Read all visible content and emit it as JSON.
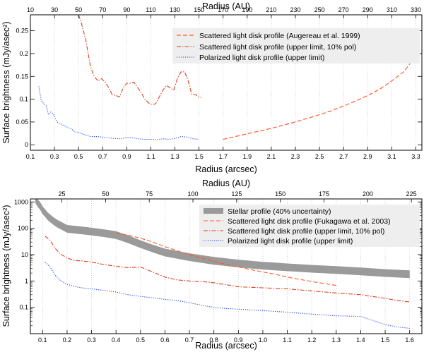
{
  "chart_data": [
    {
      "type": "line",
      "xscale": "linear",
      "yscale": "linear",
      "xlabel": "Radius (arcsec)",
      "ylabel": "Surface brightness (mJy/asec²)",
      "top_xlabel": "Radius (AU)",
      "xlim": [
        0.1,
        3.35
      ],
      "ylim": [
        -0.012,
        0.285
      ],
      "top_xlim": [
        10,
        335
      ],
      "xticks": [
        0.1,
        0.3,
        0.5,
        0.7,
        0.9,
        1.1,
        1.3,
        1.5,
        1.7,
        1.9,
        2.1,
        2.3,
        2.5,
        2.7,
        2.9,
        3.1,
        3.3
      ],
      "xtick_labels": [
        "0.1",
        "0.3",
        "0.5",
        "0.7",
        "0.9",
        "1.1",
        "1.3",
        "1.5",
        "1.7",
        "1.9",
        "2.1",
        "2.3",
        "2.5",
        "2.7",
        "2.9",
        "3.1",
        "3.3"
      ],
      "yticks": [
        0,
        0.05,
        0.1,
        0.15,
        0.2,
        0.25
      ],
      "ytick_labels": [
        "0",
        "0.05",
        "0.1",
        "0.15",
        "0.2",
        "0.25"
      ],
      "top_xticks": [
        10,
        30,
        50,
        70,
        90,
        110,
        130,
        150,
        170,
        190,
        210,
        230,
        250,
        270,
        290,
        310,
        330
      ],
      "top_xtick_labels": [
        "10",
        "30",
        "50",
        "70",
        "90",
        "110",
        "130",
        "150",
        "170",
        "190",
        "210",
        "230",
        "250",
        "270",
        "290",
        "310",
        "330"
      ],
      "grid": "vertical dotted",
      "legend_position": "top-right",
      "series": [
        {
          "name": "Scattered light disk profile (Augereau et al. 1999)",
          "style": "dashed",
          "color": "#ff5a2c",
          "width": 1.2,
          "x": [
            1.7,
            1.8,
            1.9,
            2.0,
            2.1,
            2.2,
            2.3,
            2.4,
            2.5,
            2.6,
            2.7,
            2.8,
            2.9,
            3.0,
            3.1,
            3.2,
            3.28
          ],
          "y": [
            0.012,
            0.018,
            0.024,
            0.03,
            0.036,
            0.043,
            0.05,
            0.058,
            0.066,
            0.075,
            0.085,
            0.096,
            0.108,
            0.122,
            0.14,
            0.16,
            0.188
          ]
        },
        {
          "name": "Scattered light disk profile (upper limit, 10% pol)",
          "style": "dashdot",
          "color": "#d84020",
          "width": 1.1,
          "x": [
            0.5,
            0.52,
            0.54,
            0.56,
            0.58,
            0.6,
            0.63,
            0.66,
            0.69,
            0.72,
            0.75,
            0.78,
            0.81,
            0.84,
            0.87,
            0.9,
            0.93,
            0.96,
            0.99,
            1.02,
            1.05,
            1.08,
            1.11,
            1.14,
            1.17,
            1.2,
            1.23,
            1.26,
            1.29,
            1.32,
            1.35,
            1.38,
            1.41,
            1.44,
            1.47,
            1.5,
            1.52
          ],
          "y": [
            0.285,
            0.27,
            0.25,
            0.23,
            0.2,
            0.17,
            0.15,
            0.14,
            0.145,
            0.138,
            0.125,
            0.11,
            0.108,
            0.105,
            0.125,
            0.135,
            0.135,
            0.137,
            0.125,
            0.115,
            0.1,
            0.092,
            0.088,
            0.09,
            0.105,
            0.12,
            0.13,
            0.125,
            0.12,
            0.145,
            0.16,
            0.16,
            0.14,
            0.11,
            0.11,
            0.105,
            0.104
          ]
        },
        {
          "name": "Polarized light disk profile (upper limit)",
          "style": "dotted",
          "color": "#2244ee",
          "width": 1.1,
          "x": [
            0.17,
            0.19,
            0.21,
            0.23,
            0.25,
            0.27,
            0.29,
            0.31,
            0.33,
            0.35,
            0.38,
            0.41,
            0.44,
            0.47,
            0.5,
            0.55,
            0.6,
            0.65,
            0.7,
            0.75,
            0.8,
            0.85,
            0.9,
            0.95,
            1.0,
            1.05,
            1.1,
            1.15,
            1.2,
            1.25,
            1.3,
            1.35,
            1.4,
            1.45,
            1.5
          ],
          "y": [
            0.128,
            0.098,
            0.09,
            0.086,
            0.066,
            0.072,
            0.068,
            0.055,
            0.048,
            0.046,
            0.042,
            0.038,
            0.035,
            0.028,
            0.027,
            0.022,
            0.018,
            0.018,
            0.017,
            0.015,
            0.014,
            0.013,
            0.016,
            0.015,
            0.013,
            0.012,
            0.012,
            0.011,
            0.013,
            0.012,
            0.014,
            0.018,
            0.017,
            0.013,
            0.012
          ]
        }
      ]
    },
    {
      "type": "line",
      "xscale": "linear",
      "yscale": "log",
      "xlabel": "Radius (arcsec)",
      "ylabel": "Surface brightness (mJy/asec²)",
      "top_xlabel": "Radius (AU)",
      "xlim": [
        0.05,
        1.65
      ],
      "ylim": [
        0.01,
        1300
      ],
      "top_xlim": [
        7.0,
        231.0
      ],
      "xticks": [
        0.1,
        0.2,
        0.3,
        0.4,
        0.5,
        0.6,
        0.7,
        0.8,
        0.9,
        1.0,
        1.1,
        1.2,
        1.3,
        1.4,
        1.5,
        1.6
      ],
      "xtick_labels": [
        "0.1",
        "0.2",
        "0.3",
        "0.4",
        "0.5",
        "0.6",
        "0.7",
        "0.8",
        "0.9",
        "1.0",
        "1.1",
        "1.2",
        "1.3",
        "1.4",
        "1.5",
        "1.6"
      ],
      "yticks": [
        0.1,
        1,
        10,
        100,
        1000
      ],
      "ytick_labels": [
        "0.1",
        "1",
        "10",
        "100",
        "1000"
      ],
      "top_xticks": [
        25,
        50,
        75,
        100,
        125,
        150,
        175,
        200,
        225
      ],
      "top_xtick_labels": [
        "25",
        "50",
        "75",
        "100",
        "125",
        "150",
        "175",
        "200",
        "225"
      ],
      "grid": "vertical dotted",
      "legend_position": "top-right",
      "series": [
        {
          "name": "Stellar profile (40% uncertainty)",
          "style": "band",
          "color": "#9a9a9a",
          "x": [
            0.07,
            0.08,
            0.09,
            0.1,
            0.11,
            0.12,
            0.14,
            0.16,
            0.18,
            0.2,
            0.25,
            0.3,
            0.35,
            0.4,
            0.45,
            0.5,
            0.55,
            0.6,
            0.7,
            0.8,
            0.9,
            1.0,
            1.1,
            1.2,
            1.3,
            1.4,
            1.5,
            1.6
          ],
          "y": [
            1300,
            900,
            700,
            480,
            380,
            290,
            200,
            150,
            120,
            95,
            85,
            75,
            65,
            55,
            38,
            25,
            17,
            12,
            8,
            5.8,
            4.6,
            3.8,
            3.3,
            2.9,
            2.6,
            2.3,
            2.0,
            1.8
          ]
        },
        {
          "name": "Scattered light disk profile (Fukagawa et al. 2003)",
          "style": "dashed",
          "color": "#ff5a2c",
          "width": 1.1,
          "x": [
            0.4,
            0.45,
            0.5,
            0.55,
            0.6,
            0.65,
            0.7,
            0.75,
            0.8,
            0.85,
            0.9,
            0.95,
            1.0,
            1.05,
            1.1,
            1.15,
            1.2,
            1.25,
            1.3
          ],
          "y": [
            65,
            55,
            42,
            30,
            20,
            14,
            10,
            7.5,
            5.5,
            4.3,
            3.4,
            2.7,
            2.2,
            1.8,
            1.4,
            1.15,
            0.95,
            0.8,
            0.68
          ]
        },
        {
          "name": "Scattered light disk profile (upper limit, 10% pol)",
          "style": "dashdot",
          "color": "#d84020",
          "width": 1.1,
          "x": [
            0.11,
            0.13,
            0.15,
            0.17,
            0.2,
            0.23,
            0.26,
            0.3,
            0.35,
            0.4,
            0.45,
            0.5,
            0.55,
            0.6,
            0.65,
            0.7,
            0.75,
            0.8,
            0.85,
            0.9,
            1.0,
            1.1,
            1.2,
            1.3,
            1.4,
            1.5,
            1.55,
            1.6
          ],
          "y": [
            50,
            35,
            18,
            11,
            7.5,
            6,
            5.8,
            5.2,
            4.2,
            3.6,
            3.2,
            3.4,
            2.2,
            1.4,
            1.1,
            1.0,
            0.95,
            0.85,
            0.72,
            0.6,
            0.55,
            0.5,
            0.42,
            0.35,
            0.3,
            0.22,
            0.18,
            0.16
          ]
        },
        {
          "name": "Polarized light disk profile (upper limit)",
          "style": "dotted",
          "color": "#2244ee",
          "width": 1.1,
          "x": [
            0.11,
            0.13,
            0.15,
            0.17,
            0.2,
            0.23,
            0.26,
            0.3,
            0.35,
            0.4,
            0.45,
            0.5,
            0.55,
            0.6,
            0.65,
            0.7,
            0.75,
            0.8,
            0.85,
            0.9,
            1.0,
            1.1,
            1.2,
            1.3,
            1.4,
            1.5,
            1.55,
            1.6
          ],
          "y": [
            5.2,
            3.5,
            1.7,
            1.1,
            0.75,
            0.62,
            0.55,
            0.5,
            0.44,
            0.38,
            0.3,
            0.26,
            0.23,
            0.2,
            0.18,
            0.15,
            0.12,
            0.1,
            0.09,
            0.085,
            0.075,
            0.065,
            0.055,
            0.048,
            0.045,
            0.022,
            0.018,
            0.016
          ]
        }
      ]
    }
  ]
}
